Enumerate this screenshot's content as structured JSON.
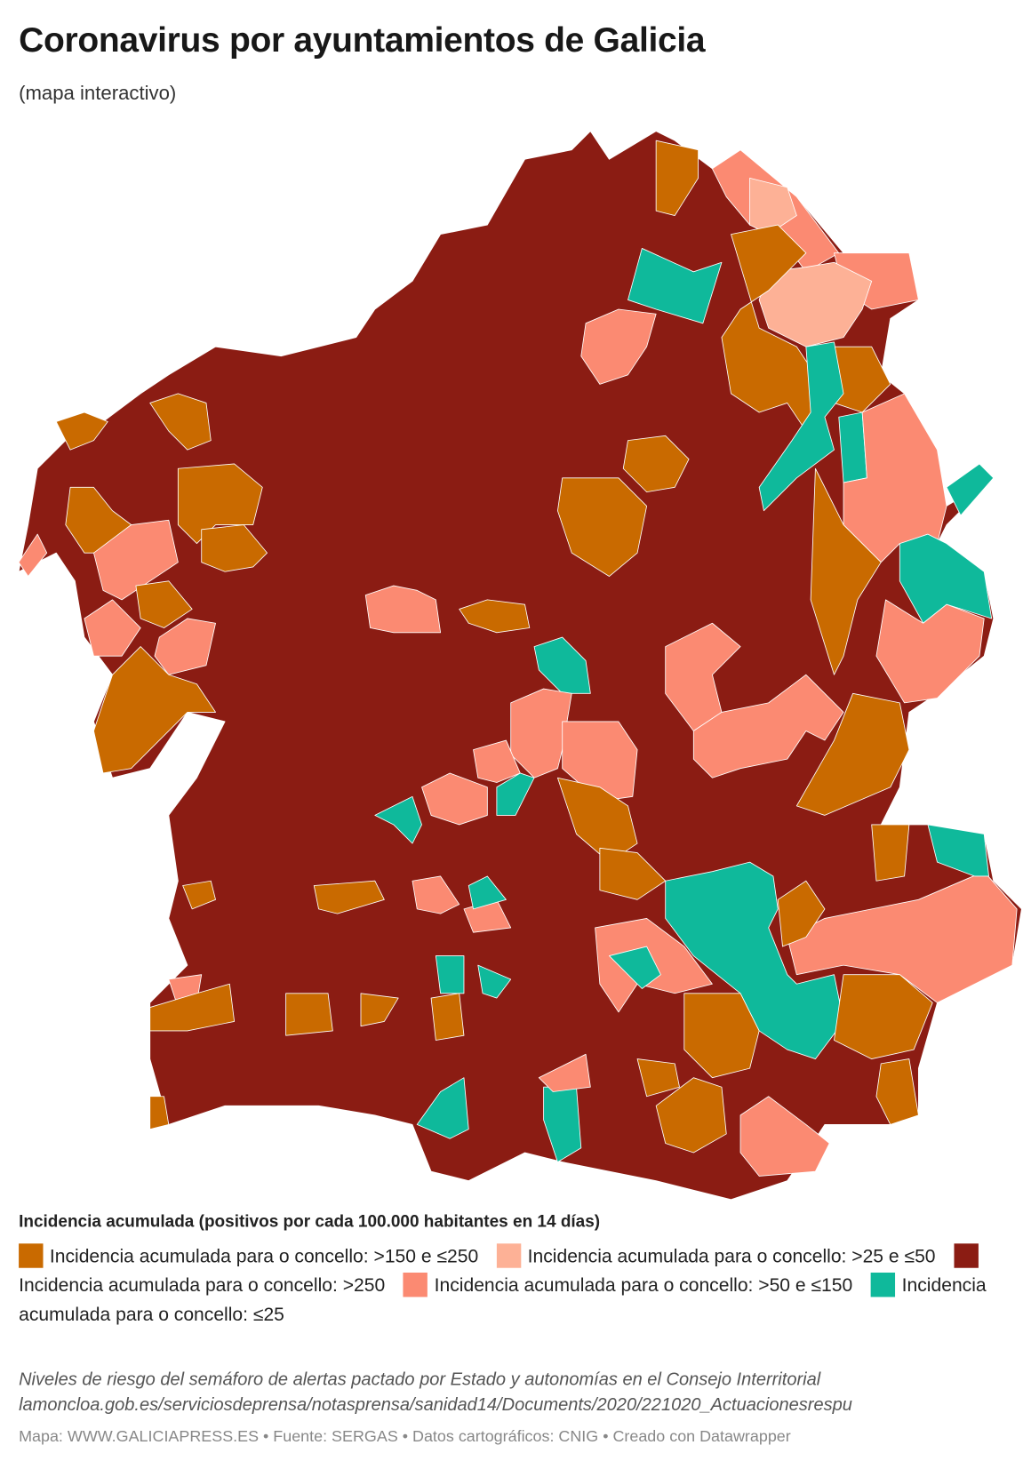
{
  "title": "Coronavirus por ayuntamientos de Galicia",
  "subtitle": "(mapa interactivo)",
  "legend": {
    "title": "Incidencia acumulada (positivos por cada 100.000 habitantes en 14 días)",
    "items": [
      {
        "label": "Incidencia acumulada para o concello: >150 e ≤250",
        "color": "#c96a00"
      },
      {
        "label": "Incidencia acumulada para o concello: >25 e ≤50",
        "color": "#fdb196"
      },
      {
        "label": "Incidencia acumulada para o concello: >250",
        "color": "#8b1c13"
      },
      {
        "label": "Incidencia acumulada para o concello: >50 e ≤150",
        "color": "#fb8a72"
      },
      {
        "label": "Incidencia acumulada para o concello: ≤25",
        "color": "#0fb99b"
      }
    ]
  },
  "notes": [
    "Niveles de riesgo del semáforo de alertas pactado por Estado y autonomías en el Consejo Interritorial",
    "lamoncloa.gob.es/serviciosdeprensa/notasprensa/sanidad14/Documents/2020/221020_Actuacionesrespu"
  ],
  "footer": "Mapa: WWW.GALICIAPRESS.ES • Fuente: SERGAS • Datos cartográficos: CNIG • Creado con Datawrapper"
}
